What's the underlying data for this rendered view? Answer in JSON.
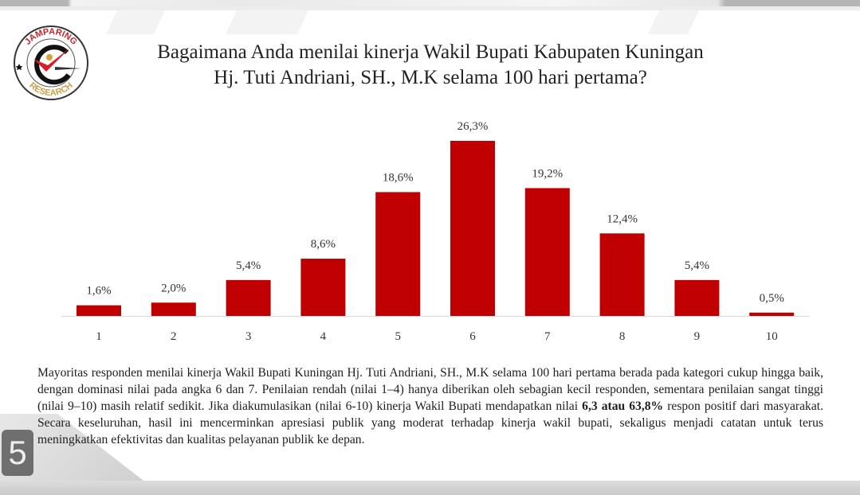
{
  "title_line1": "Bagaimana Anda menilai kinerja Wakil Bupati Kabupaten Kuningan",
  "title_line2": "Hj. Tuti Andriani, SH., M.K selama 100 hari pertama?",
  "logo": {
    "top_text": "JAMPARING",
    "bottom_text": "RESEARCH"
  },
  "colors": {
    "bar": "#c00000",
    "axis": "#d9d9d9"
  },
  "chart_data": {
    "type": "bar",
    "categories": [
      "1",
      "2",
      "3",
      "4",
      "5",
      "6",
      "7",
      "8",
      "9",
      "10"
    ],
    "values": [
      1.6,
      2.0,
      5.4,
      8.6,
      18.6,
      26.3,
      19.2,
      12.4,
      5.4,
      0.5
    ],
    "data_labels": [
      "1,6%",
      "2,0%",
      "5,4%",
      "8,6%",
      "18,6%",
      "26,3%",
      "19,2%",
      "12,4%",
      "5,4%",
      "0,5%"
    ],
    "xlabel": "",
    "ylabel": "",
    "ylim": [
      0,
      26.3
    ],
    "grid": false,
    "legend": "none"
  },
  "paragraph": {
    "part1": "Mayoritas responden menilai kinerja Wakil Bupati Kuningan Hj. Tuti Andriani, SH., M.K selama 100 hari pertama berada pada kategori cukup hingga baik, dengan dominasi nilai pada angka 6 dan 7. Penilaian rendah (nilai 1–4) hanya diberikan oleh sebagian kecil responden, sementara penilaian sangat tinggi (nilai 9–10) masih relatif sedikit. Jika diakumulasikan (nilai 6-10) kinerja Wakil Bupati mendapatkan nilai ",
    "bold": "6,3 atau 63,8%",
    "part2": " respon positif dari masyarakat. Secara keseluruhan, hasil ini mencerminkan apresiasi publik yang moderat terhadap kinerja wakil bupati, sekaligus menjadi catatan untuk terus meningkatkan efektivitas dan kualitas pelayanan publik ke depan."
  },
  "page_number": "5"
}
